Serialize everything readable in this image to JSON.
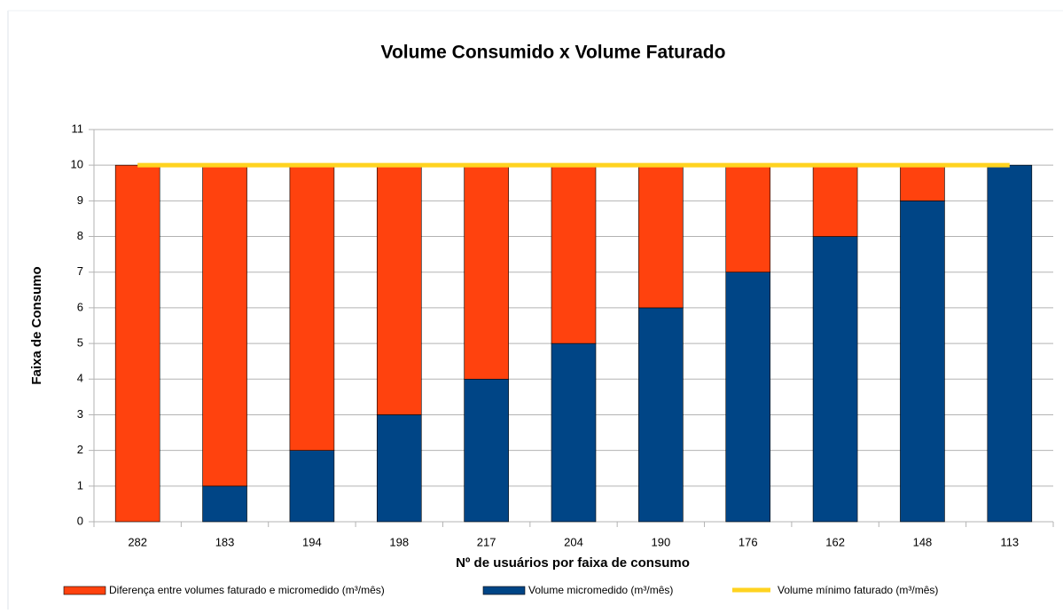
{
  "chart_data": {
    "type": "bar",
    "stacked": true,
    "title": "Volume Consumido x Volume Faturado",
    "x_label": "Nº de usuários por faixa de consumo",
    "y_label": "Faixa de Consumo",
    "categories": [
      "282",
      "183",
      "194",
      "198",
      "217",
      "204",
      "190",
      "176",
      "162",
      "148",
      "113"
    ],
    "series": [
      {
        "name": "Diferença entre volumes faturado e micromedido (m³/mês)",
        "type": "bar",
        "color": "#ff420e",
        "values": [
          10,
          9,
          8,
          7,
          6,
          5,
          4,
          3,
          2,
          1,
          0
        ]
      },
      {
        "name": "Volume micromedido (m³/mês)",
        "type": "bar",
        "color": "#004586",
        "values": [
          0,
          1,
          2,
          3,
          4,
          5,
          6,
          7,
          8,
          9,
          10
        ]
      },
      {
        "name": "Volume mínimo faturado (m³/mês)",
        "type": "line",
        "color": "#ffd320",
        "values": [
          10,
          10,
          10,
          10,
          10,
          10,
          10,
          10,
          10,
          10,
          10
        ]
      }
    ],
    "ylim": [
      0,
      11
    ],
    "yticks": [
      0,
      1,
      2,
      3,
      4,
      5,
      6,
      7,
      8,
      9,
      10,
      11
    ],
    "grid": true,
    "legend": "bottom"
  }
}
